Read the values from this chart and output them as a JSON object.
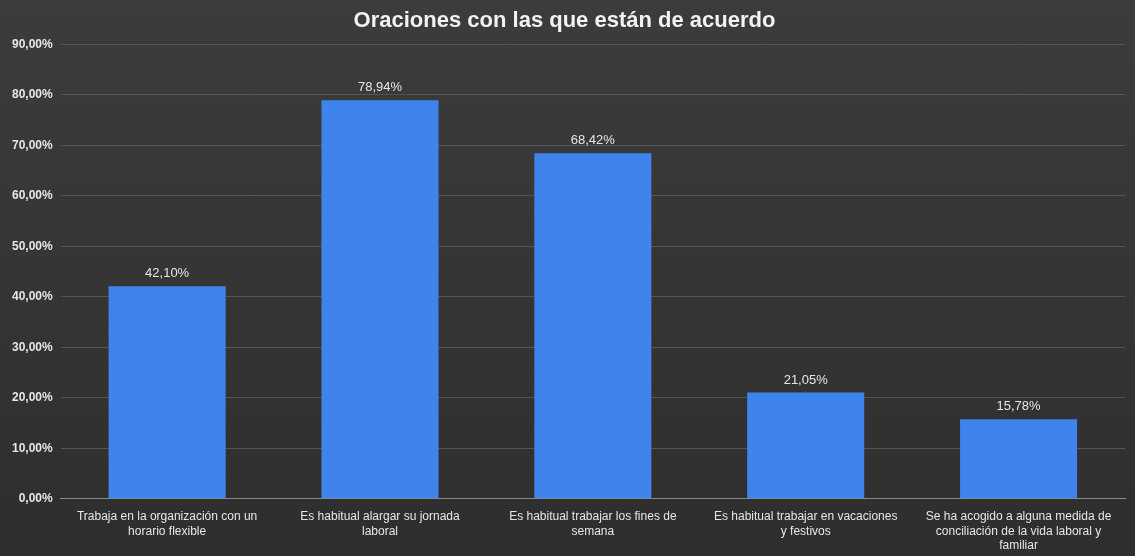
{
  "chart_data": {
    "type": "bar",
    "title": "Oraciones con las que están de acuerdo",
    "categories": [
      "Trabaja en la organización con un horario flexible",
      "Es habitual alargar su jornada laboral",
      "Es habitual trabajar los fines de semana",
      "Es habitual trabajar en vacaciones y festivos",
      "Se ha acogido a alguna medida de conciliación de la vida laboral y familiar"
    ],
    "values": [
      42.1,
      78.94,
      68.42,
      21.05,
      15.78
    ],
    "value_labels": [
      "42,10%",
      "78,94%",
      "68,42%",
      "21,05%",
      "15,78%"
    ],
    "color": "#3f83ec",
    "ylim": [
      0,
      90
    ],
    "yticks": [
      {
        "value": 0,
        "label": "0,00%"
      },
      {
        "value": 10,
        "label": "10,00%"
      },
      {
        "value": 20,
        "label": "20,00%"
      },
      {
        "value": 30,
        "label": "30,00%"
      },
      {
        "value": 40,
        "label": "40,00%"
      },
      {
        "value": 50,
        "label": "50,00%"
      },
      {
        "value": 60,
        "label": "60,00%"
      },
      {
        "value": 70,
        "label": "70,00%"
      },
      {
        "value": 80,
        "label": "80,00%"
      },
      {
        "value": 90,
        "label": "90,00%"
      }
    ],
    "grid": "y"
  }
}
